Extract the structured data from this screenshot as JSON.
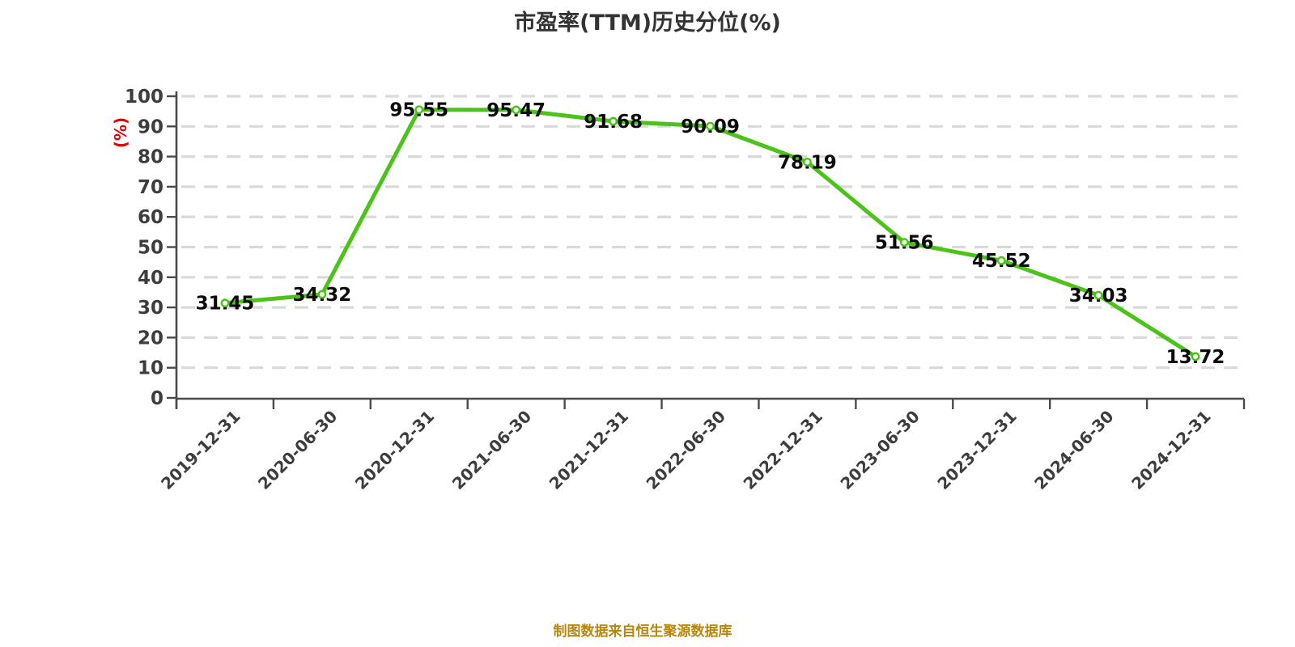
{
  "title": "市盈率(TTM)历史分位(%)",
  "footer": "制图数据来自恒生聚源数据库",
  "colors": {
    "line": "#4bc318",
    "marker_fill": "#ffffff",
    "marker_stroke": "#4bc318",
    "grid": "#d9d9d9",
    "axis": "#4a4a4a",
    "tick_label": "#3d3d3d",
    "value_label": "#0a0a0a",
    "title": "#333333",
    "unit_label": "#e60000",
    "footer": "#b8860b",
    "background": "#ffffff"
  },
  "chart_data": {
    "type": "line",
    "title": "市盈率(TTM)历史分位(%)",
    "xlabel": "",
    "ylabel": "(%)",
    "categories": [
      "2019-12-31",
      "2020-06-30",
      "2020-12-31",
      "2021-06-30",
      "2021-12-31",
      "2022-06-30",
      "2022-12-31",
      "2023-06-30",
      "2023-12-31",
      "2024-06-30",
      "2024-12-31"
    ],
    "values": [
      31.45,
      34.32,
      95.55,
      95.47,
      91.68,
      90.09,
      78.19,
      51.56,
      45.52,
      34.03,
      13.72
    ],
    "value_labels": [
      "31.45",
      "34.32",
      "95.55",
      "95.47",
      "91.68",
      "90.09",
      "78.19",
      "51.56",
      "45.52",
      "34.03",
      "13.72"
    ],
    "ylim": [
      0,
      100
    ],
    "yticks": [
      0,
      10,
      20,
      30,
      40,
      50,
      60,
      70,
      80,
      90,
      100
    ],
    "grid": "horizontal-dashed",
    "legend": "none",
    "marker": "circle-white",
    "x_label_rotation": -45,
    "source_note": "制图数据来自恒生聚源数据库"
  }
}
